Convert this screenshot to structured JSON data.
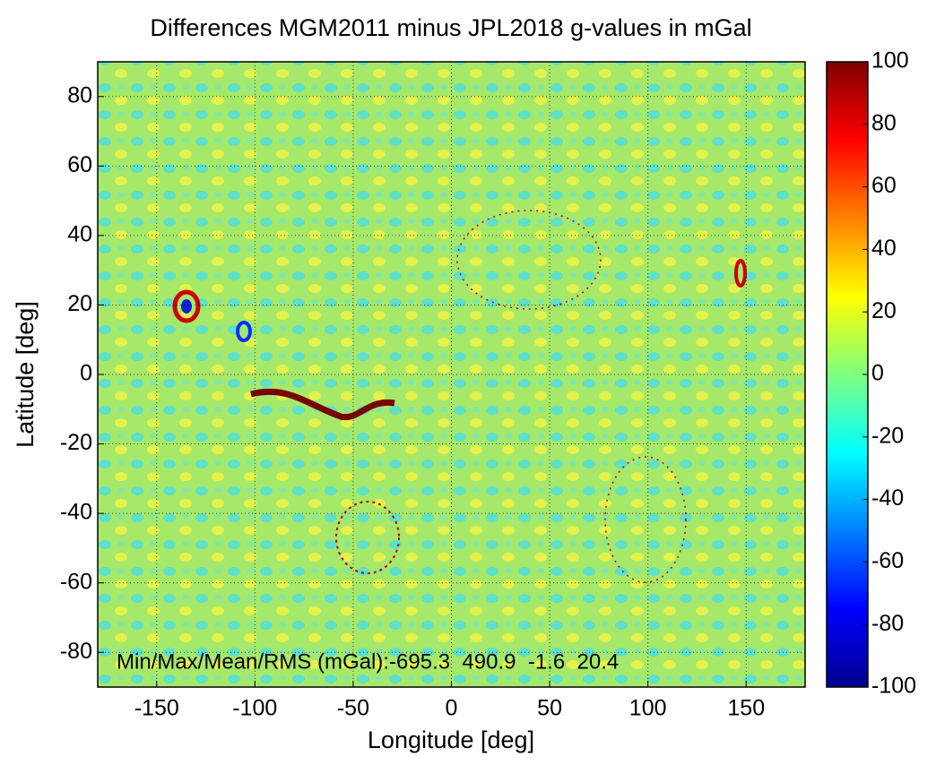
{
  "chart_data": {
    "type": "heatmap",
    "title": "Differences MGM2011 minus JPL2018 g-values in mGal",
    "xlabel": "Longitude [deg]",
    "ylabel": "Latitude [deg]",
    "xlim": [
      -180,
      180
    ],
    "xticks": [
      -150,
      -100,
      -50,
      0,
      50,
      100,
      150
    ],
    "ylim": [
      -90,
      90
    ],
    "yticks": [
      -80,
      -60,
      -40,
      -20,
      0,
      20,
      40,
      60,
      80
    ],
    "clim": [
      -100,
      100
    ],
    "cticks": [
      -100,
      -80,
      -60,
      -40,
      -20,
      0,
      20,
      40,
      60,
      80,
      100
    ],
    "grid": true,
    "annotation": "Min/Max/Mean/RMS (mGal):-695.3  490.9  -1.6  20.4"
  }
}
